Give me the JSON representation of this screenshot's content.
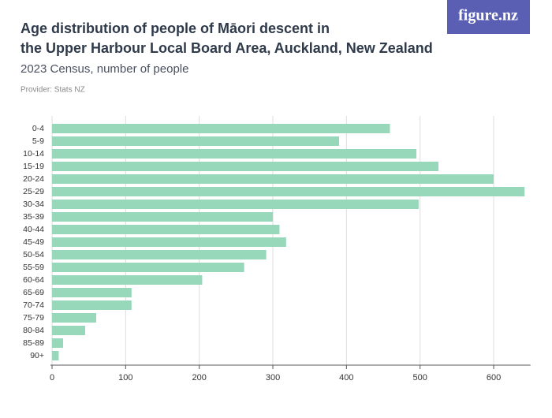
{
  "logo": "figure.nz",
  "chart_data": {
    "type": "hbar",
    "title": [
      "Age distribution of people of Māori descent in",
      "the Upper Harbour Local Board Area, Auckland, New Zealand"
    ],
    "subtitle": "2023 Census, number of people",
    "provider": "Provider: Stats NZ",
    "categories": [
      "0-4",
      "5-9",
      "10-14",
      "15-19",
      "20-24",
      "25-29",
      "30-34",
      "35-39",
      "40-44",
      "45-49",
      "50-54",
      "55-59",
      "60-64",
      "65-69",
      "70-74",
      "75-79",
      "80-84",
      "85-89",
      "90+"
    ],
    "values": [
      459,
      390,
      495,
      525,
      600,
      642,
      498,
      300,
      309,
      318,
      291,
      261,
      204,
      108,
      108,
      60,
      45,
      15,
      9
    ],
    "color": "#96d8b9",
    "xlim": [
      0,
      650
    ],
    "xticks": [
      0,
      100,
      200,
      300,
      400,
      500,
      600
    ],
    "grid": true
  }
}
